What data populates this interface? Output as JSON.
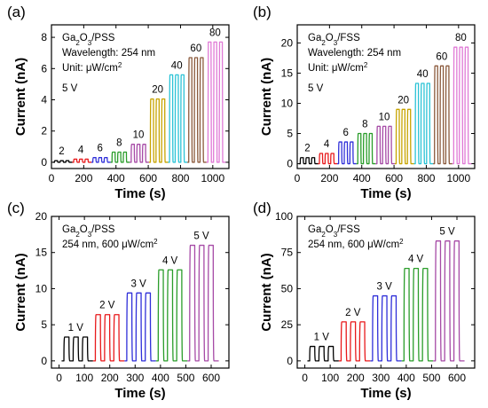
{
  "chart_data": [
    {
      "type": "line",
      "panel": "(a)",
      "xlabel": "Time (s)",
      "ylabel": "Current (nA)",
      "xlim": [
        0,
        1100
      ],
      "ylim": [
        -0.4,
        8.8
      ],
      "xticks": [
        0,
        200,
        400,
        600,
        800,
        1000
      ],
      "yticks": [
        0,
        2,
        4,
        6,
        8
      ],
      "annotations": [
        "Ga2O3/PSS",
        "Wavelength: 254 nm",
        "Unit: μW/cm2",
        "5 V"
      ],
      "mode": "intensity",
      "series": [
        {
          "name": "2",
          "value": 0.1,
          "color": "#000000"
        },
        {
          "name": "4",
          "value": 0.2,
          "color": "#e8191b"
        },
        {
          "name": "6",
          "value": 0.3,
          "color": "#2f2fd9"
        },
        {
          "name": "8",
          "value": 0.65,
          "color": "#2a9d2a"
        },
        {
          "name": "10",
          "value": 1.15,
          "color": "#a64aa6"
        },
        {
          "name": "20",
          "value": 4.05,
          "color": "#c7a400"
        },
        {
          "name": "40",
          "value": 5.6,
          "color": "#2bc3d6"
        },
        {
          "name": "60",
          "value": 6.7,
          "color": "#8b5a3c"
        },
        {
          "name": "80",
          "value": 7.7,
          "color": "#e07ad6"
        }
      ]
    },
    {
      "type": "line",
      "panel": "(b)",
      "xlabel": "Time (s)",
      "ylabel": "Current (nA)",
      "xlim": [
        0,
        1100
      ],
      "ylim": [
        -0.8,
        23
      ],
      "xticks": [
        0,
        200,
        400,
        600,
        800,
        1000
      ],
      "yticks": [
        0,
        5,
        10,
        15,
        20
      ],
      "annotations": [
        "Ga2O3/FSS",
        "Wavelength: 254 nm",
        "Unit: μW/cm2",
        "5 V"
      ],
      "mode": "intensity",
      "series": [
        {
          "name": "2",
          "value": 1.0,
          "color": "#000000"
        },
        {
          "name": "4",
          "value": 1.7,
          "color": "#e8191b"
        },
        {
          "name": "6",
          "value": 3.6,
          "color": "#2f2fd9"
        },
        {
          "name": "8",
          "value": 5.0,
          "color": "#2a9d2a"
        },
        {
          "name": "10",
          "value": 6.2,
          "color": "#a64aa6"
        },
        {
          "name": "20",
          "value": 9.0,
          "color": "#c7a400"
        },
        {
          "name": "40",
          "value": 13.3,
          "color": "#2bc3d6"
        },
        {
          "name": "60",
          "value": 16.2,
          "color": "#8b5a3c"
        },
        {
          "name": "80",
          "value": 19.3,
          "color": "#e07ad6"
        }
      ]
    },
    {
      "type": "line",
      "panel": "(c)",
      "xlabel": "Time (s)",
      "ylabel": "Current (nA)",
      "xlim": [
        -30,
        670
      ],
      "ylim": [
        -1,
        20
      ],
      "xticks": [
        0,
        100,
        200,
        300,
        400,
        500,
        600
      ],
      "yticks": [
        0,
        5,
        10,
        15,
        20
      ],
      "annotations": [
        "Ga2O3/PSS",
        "254 nm, 600 μW/cm2"
      ],
      "mode": "voltage",
      "series": [
        {
          "name": "1 V",
          "value": 3.3,
          "color": "#000000"
        },
        {
          "name": "2 V",
          "value": 6.4,
          "color": "#e8191b"
        },
        {
          "name": "3 V",
          "value": 9.4,
          "color": "#2f2fd9"
        },
        {
          "name": "4 V",
          "value": 12.6,
          "color": "#2a9d2a"
        },
        {
          "name": "5 V",
          "value": 16.0,
          "color": "#a64aa6"
        }
      ]
    },
    {
      "type": "line",
      "panel": "(d)",
      "xlabel": "Time (s)",
      "ylabel": "Current (nA)",
      "xlim": [
        -30,
        670
      ],
      "ylim": [
        -5,
        100
      ],
      "xticks": [
        0,
        100,
        200,
        300,
        400,
        500,
        600
      ],
      "yticks": [
        0,
        25,
        50,
        75,
        100
      ],
      "annotations": [
        "Ga2O3/FSS",
        "254 nm, 600 μW/cm2"
      ],
      "mode": "voltage",
      "series": [
        {
          "name": "1 V",
          "value": 10,
          "color": "#000000"
        },
        {
          "name": "2 V",
          "value": 27,
          "color": "#e8191b"
        },
        {
          "name": "3 V",
          "value": 45,
          "color": "#2f2fd9"
        },
        {
          "name": "4 V",
          "value": 64,
          "color": "#2a9d2a"
        },
        {
          "name": "5 V",
          "value": 83,
          "color": "#a64aa6"
        }
      ]
    }
  ]
}
